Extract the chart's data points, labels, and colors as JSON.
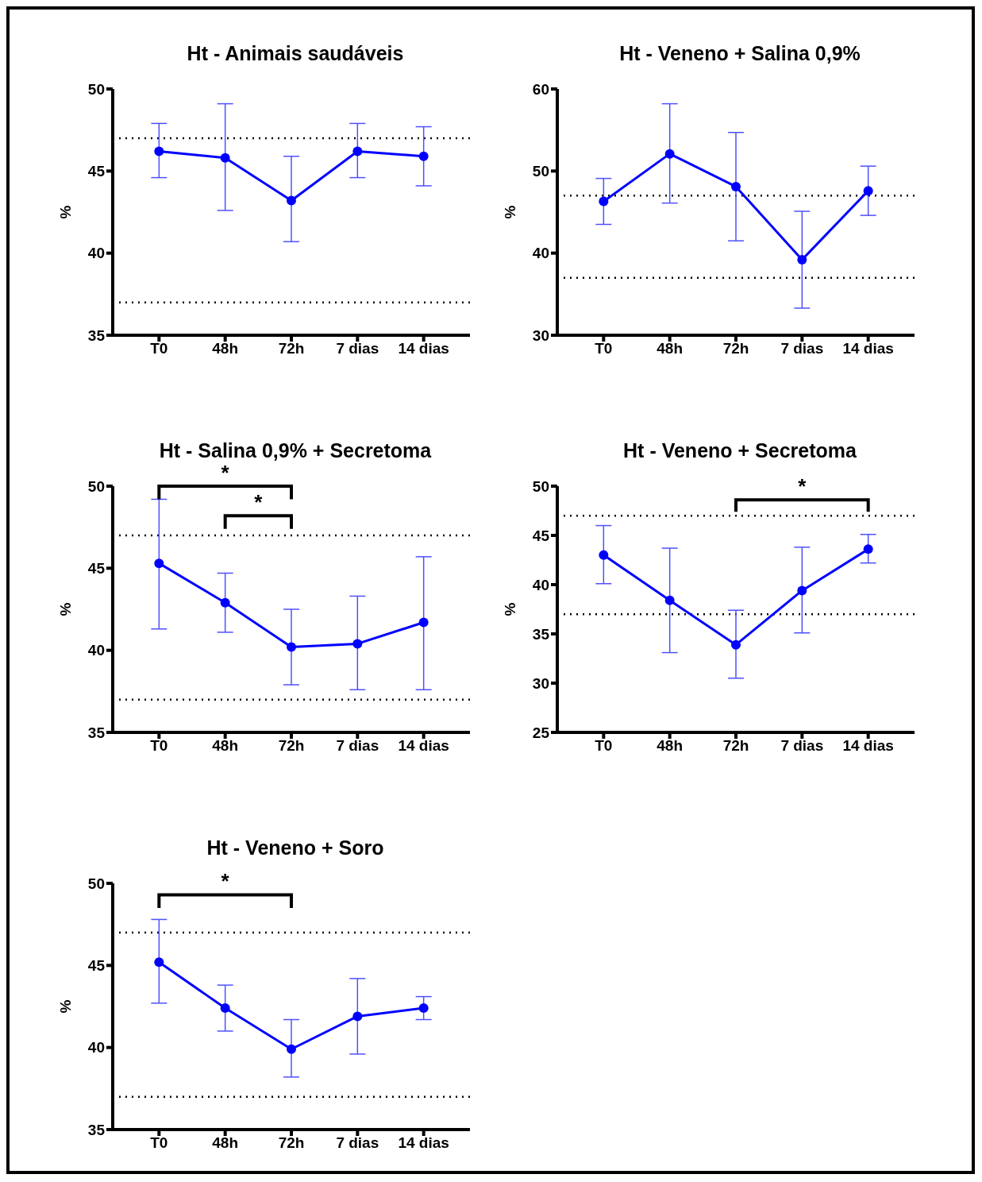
{
  "chart_data": [
    {
      "type": "line",
      "title": "Ht - Animais saudáveis",
      "ylabel": "%",
      "categories": [
        "T0",
        "48h",
        "72h",
        "7 dias",
        "14 dias"
      ],
      "marker": "circle",
      "ylim": [
        35,
        50
      ],
      "yticks": [
        35,
        40,
        45,
        50
      ],
      "series": [
        {
          "color": "#0000ff",
          "values": [
            46.2,
            45.8,
            43.2,
            46.2,
            45.9
          ],
          "errors": [
            [
              44.6,
              47.9
            ],
            [
              42.6,
              49.1
            ],
            [
              40.7,
              45.9
            ],
            [
              44.6,
              47.9
            ],
            [
              44.1,
              47.7
            ]
          ]
        }
      ],
      "ref_lines": [
        {
          "axis": "y",
          "value": 47,
          "line_style": "dotted",
          "color": "#000000"
        },
        {
          "axis": "y",
          "value": 37,
          "line_style": "dotted",
          "color": "#000000"
        }
      ]
    },
    {
      "type": "line",
      "title": "Ht - Veneno + Salina 0,9%",
      "ylabel": "%",
      "categories": [
        "T0",
        "48h",
        "72h",
        "7 dias",
        "14 dias"
      ],
      "marker": "circle",
      "ylim": [
        30,
        60
      ],
      "yticks": [
        30,
        40,
        50,
        60
      ],
      "series": [
        {
          "color": "#0000ff",
          "values": [
            46.3,
            52.1,
            48.1,
            39.2,
            47.6
          ],
          "errors": [
            [
              43.5,
              49.1
            ],
            [
              46.1,
              58.2
            ],
            [
              41.5,
              54.7
            ],
            [
              33.3,
              45.1
            ],
            [
              44.6,
              50.6
            ]
          ]
        }
      ],
      "ref_lines": [
        {
          "axis": "y",
          "value": 47,
          "line_style": "dotted",
          "color": "#000000"
        },
        {
          "axis": "y",
          "value": 37,
          "line_style": "dotted",
          "color": "#000000"
        }
      ]
    },
    {
      "type": "line",
      "title": "Ht - Salina 0,9% + Secretoma",
      "ylabel": "%",
      "categories": [
        "T0",
        "48h",
        "72h",
        "7 dias",
        "14 dias"
      ],
      "marker": "circle",
      "ylim": [
        35,
        50
      ],
      "yticks": [
        35,
        40,
        45,
        50
      ],
      "series": [
        {
          "color": "#0000ff",
          "values": [
            45.3,
            42.9,
            40.2,
            40.4,
            41.7
          ],
          "errors": [
            [
              41.3,
              49.2
            ],
            [
              41.1,
              44.7
            ],
            [
              37.9,
              42.5
            ],
            [
              37.6,
              43.3
            ],
            [
              37.6,
              45.7
            ]
          ]
        }
      ],
      "ref_lines": [
        {
          "axis": "y",
          "value": 47,
          "line_style": "dotted",
          "color": "#000000"
        },
        {
          "axis": "y",
          "value": 37,
          "line_style": "dotted",
          "color": "#000000"
        }
      ],
      "annotations": [
        "*",
        "*"
      ]
    },
    {
      "type": "line",
      "title": "Ht - Veneno + Secretoma",
      "ylabel": "%",
      "categories": [
        "T0",
        "48h",
        "72h",
        "7 dias",
        "14 dias"
      ],
      "marker": "circle",
      "ylim": [
        25,
        50
      ],
      "yticks": [
        25,
        30,
        35,
        40,
        45,
        50
      ],
      "series": [
        {
          "color": "#0000ff",
          "values": [
            43.0,
            38.4,
            33.9,
            39.4,
            43.6
          ],
          "errors": [
            [
              40.1,
              46.0
            ],
            [
              33.1,
              43.7
            ],
            [
              30.5,
              37.4
            ],
            [
              35.1,
              43.8
            ],
            [
              42.2,
              45.1
            ]
          ]
        }
      ],
      "ref_lines": [
        {
          "axis": "y",
          "value": 47,
          "line_style": "dotted",
          "color": "#000000"
        },
        {
          "axis": "y",
          "value": 37,
          "line_style": "dotted",
          "color": "#000000"
        }
      ],
      "annotations": [
        "*"
      ]
    },
    {
      "type": "line",
      "title": "Ht - Veneno + Soro",
      "ylabel": "%",
      "categories": [
        "T0",
        "48h",
        "72h",
        "7 dias",
        "14 dias"
      ],
      "marker": "circle",
      "ylim": [
        35,
        50
      ],
      "yticks": [
        35,
        40,
        45,
        50
      ],
      "series": [
        {
          "color": "#0000ff",
          "values": [
            45.2,
            42.4,
            39.9,
            41.9,
            42.4
          ],
          "errors": [
            [
              42.7,
              47.8
            ],
            [
              41.0,
              43.8
            ],
            [
              38.2,
              41.7
            ],
            [
              39.6,
              44.2
            ],
            [
              41.7,
              43.1
            ]
          ]
        }
      ],
      "ref_lines": [
        {
          "axis": "y",
          "value": 47,
          "line_style": "dotted",
          "color": "#000000"
        },
        {
          "axis": "y",
          "value": 37,
          "line_style": "dotted",
          "color": "#000000"
        }
      ],
      "annotations": [
        "*"
      ]
    }
  ]
}
